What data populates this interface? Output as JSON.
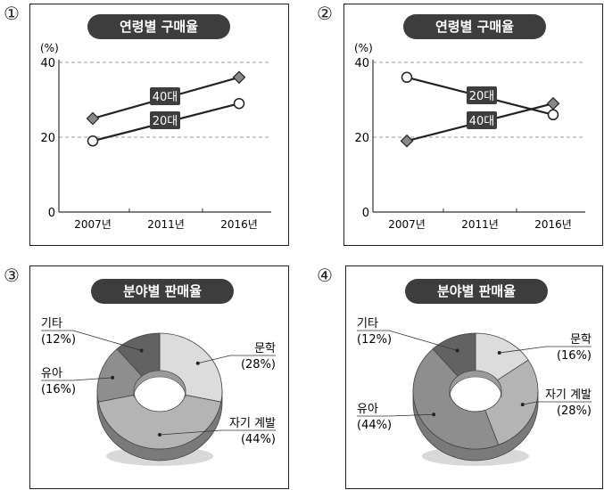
{
  "panels": [
    {
      "number": "①",
      "chart_title": "연령별 구매율",
      "chart_data": {
        "type": "line",
        "ylabel": "(%)",
        "ylim": [
          0,
          40
        ],
        "yticks": [
          "0",
          "20",
          "40"
        ],
        "categories": [
          "2007년",
          "2011년",
          "2016년"
        ],
        "series": [
          {
            "name": "40대",
            "marker": "diamond",
            "values": [
              25,
              null,
              36
            ]
          },
          {
            "name": "20대",
            "marker": "circle",
            "values": [
              19,
              null,
              29
            ]
          }
        ]
      }
    },
    {
      "number": "②",
      "chart_title": "연령별 구매율",
      "chart_data": {
        "type": "line",
        "ylabel": "(%)",
        "ylim": [
          0,
          40
        ],
        "yticks": [
          "0",
          "20",
          "40"
        ],
        "categories": [
          "2007년",
          "2011년",
          "2016년"
        ],
        "series": [
          {
            "name": "20대",
            "marker": "circle",
            "values": [
              36,
              null,
              26
            ]
          },
          {
            "name": "40대",
            "marker": "diamond",
            "values": [
              19,
              null,
              29
            ]
          }
        ]
      }
    },
    {
      "number": "③",
      "chart_title": "분야별 판매율",
      "chart_data": {
        "type": "pie",
        "labels": [
          "문학",
          "자기 계발",
          "유아",
          "기타"
        ],
        "pct_labels": [
          "(28%)",
          "(44%)",
          "(16%)",
          "(12%)"
        ],
        "values": [
          28,
          44,
          16,
          12
        ],
        "colors": [
          "#dcdcdc",
          "#b4b4b4",
          "#8e8e8e",
          "#626262"
        ]
      }
    },
    {
      "number": "④",
      "chart_title": "분야별 판매율",
      "chart_data": {
        "type": "pie",
        "labels": [
          "문학",
          "자기 계발",
          "유아",
          "기타"
        ],
        "pct_labels": [
          "(16%)",
          "(28%)",
          "(44%)",
          "(12%)"
        ],
        "values": [
          16,
          28,
          44,
          12
        ],
        "colors": [
          "#dcdcdc",
          "#b4b4b4",
          "#8e8e8e",
          "#626262"
        ]
      }
    }
  ]
}
